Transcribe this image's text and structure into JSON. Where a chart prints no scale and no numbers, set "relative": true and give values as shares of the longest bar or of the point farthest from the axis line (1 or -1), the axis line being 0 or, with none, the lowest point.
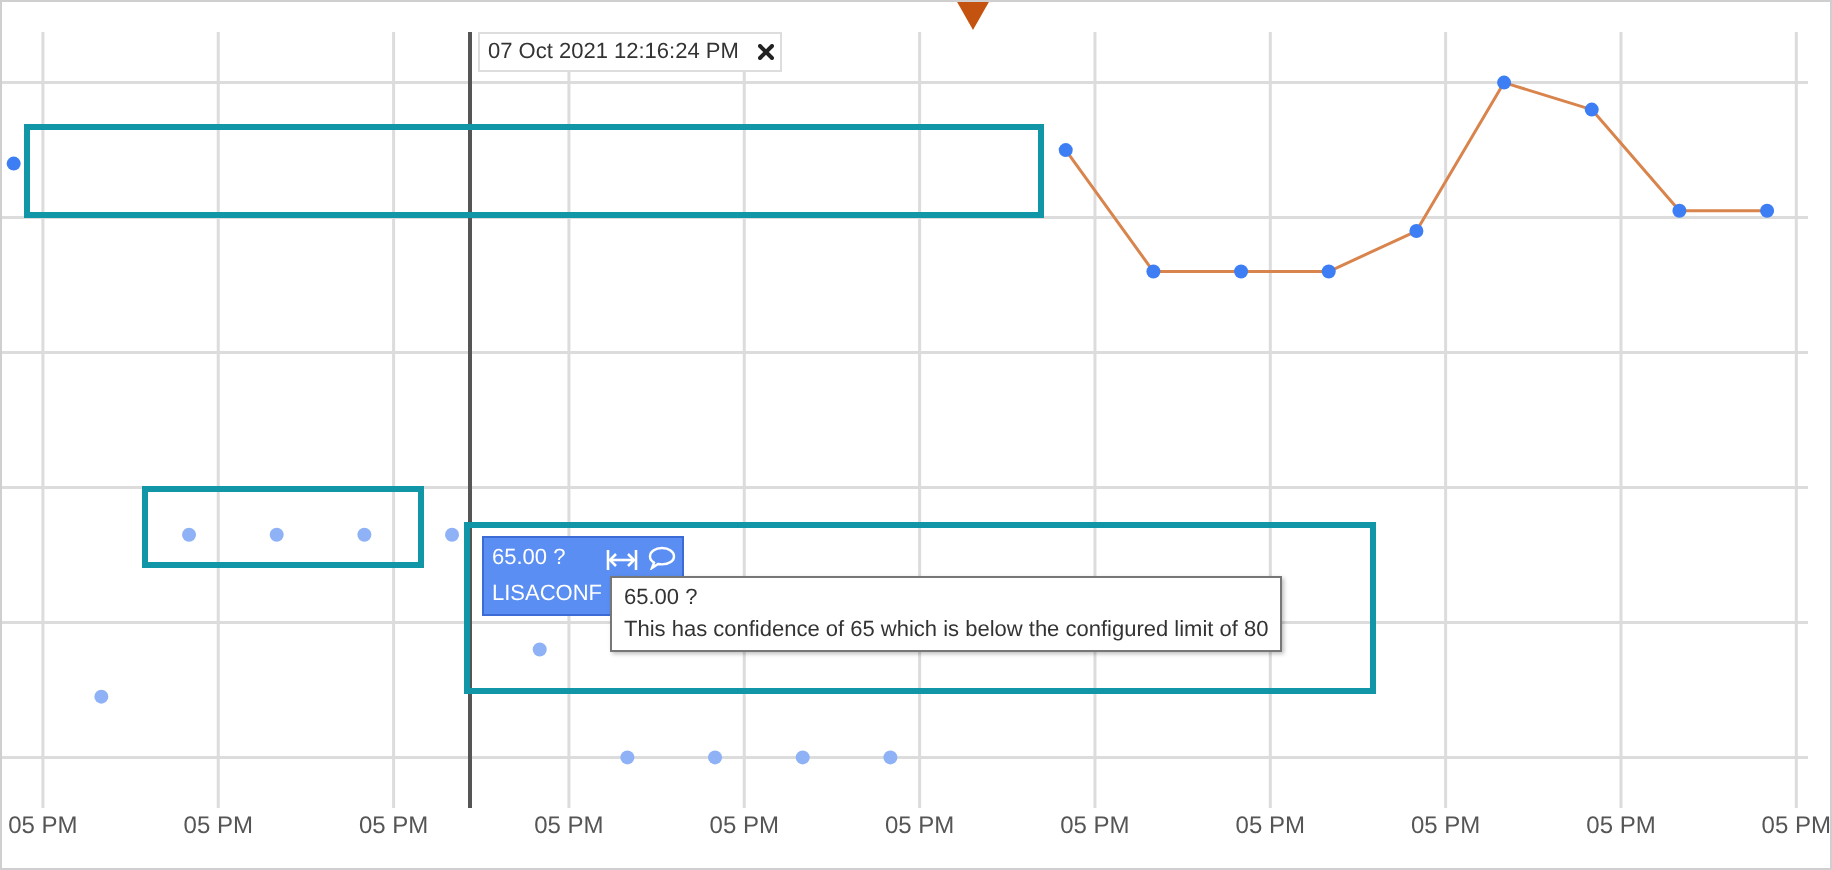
{
  "chart_data": {
    "type": "line",
    "relative": true,
    "categories": [
      null,
      "05 PM",
      null,
      null,
      null,
      null,
      null,
      "05 PM",
      null,
      null,
      null,
      null,
      null,
      "05 PM",
      null,
      null,
      null,
      null,
      null,
      "05 PM",
      null,
      null,
      null,
      null,
      null,
      "05 PM",
      null,
      null,
      null,
      null,
      null,
      "05 PM",
      null,
      null,
      null,
      null,
      null,
      "05 PM",
      null,
      null,
      null,
      null,
      null,
      "05 PM",
      null,
      null,
      null,
      null,
      null,
      "05 PM",
      null,
      null,
      null,
      null,
      null,
      "05 PM",
      null,
      null,
      null,
      null,
      null,
      "05 PM"
    ],
    "tick_labels": "x",
    "grid": true,
    "series": [
      {
        "color": "#d8844c",
        "marker": "none",
        "values": [
          null,
          null,
          null,
          null,
          null,
          null,
          null,
          null,
          null,
          null,
          null,
          null,
          null,
          null,
          null,
          null,
          null,
          null,
          null,
          null,
          null,
          null,
          null,
          null,
          null,
          null,
          null,
          null,
          null,
          null,
          null,
          null,
          null,
          null,
          null,
          null,
          0.9,
          null,
          null,
          0.72,
          null,
          null,
          0.72,
          null,
          null,
          0.72,
          null,
          null,
          0.78,
          null,
          null,
          1,
          null,
          null,
          0.96,
          null,
          null,
          0.81,
          null,
          null,
          0.81,
          null
        ]
      },
      {
        "type": "scatter",
        "color": "#3d7ef5",
        "marker": "circle",
        "values": [
          0.88,
          null,
          null,
          null,
          null,
          null,
          null,
          null,
          null,
          null,
          null,
          null,
          null,
          null,
          null,
          null,
          null,
          null,
          null,
          null,
          null,
          null,
          null,
          null,
          null,
          null,
          null,
          null,
          null,
          null,
          null,
          null,
          null,
          null,
          null,
          null,
          0.9,
          null,
          null,
          0.72,
          null,
          null,
          0.72,
          null,
          null,
          0.72,
          null,
          null,
          0.78,
          null,
          null,
          1,
          null,
          null,
          0.96,
          null,
          null,
          0.81,
          null,
          null,
          0.81,
          null
        ]
      },
      {
        "type": "scatter",
        "color": "#8fb2f6",
        "marker": "circle",
        "values": [
          null,
          null,
          null,
          0.09,
          null,
          null,
          0.33,
          null,
          null,
          0.33,
          null,
          null,
          0.33,
          null,
          null,
          0.33,
          null,
          null,
          0.16,
          null,
          null,
          0,
          null,
          null,
          0,
          null,
          null,
          0,
          null,
          null,
          0,
          null,
          null,
          null,
          null,
          null,
          null,
          null,
          null,
          null,
          null,
          null,
          null,
          null,
          null,
          null,
          null,
          null,
          null,
          null,
          null,
          null,
          null,
          null,
          null,
          null,
          null,
          null,
          null,
          null,
          null,
          null
        ]
      }
    ],
    "annotations": [
      "07 Oct 2021 12:16:24 PM",
      "65.00 ?",
      "LISACONF",
      "65.00 ?",
      "This has confidence of 65 which is below the configured limit of 80"
    ]
  }
}
